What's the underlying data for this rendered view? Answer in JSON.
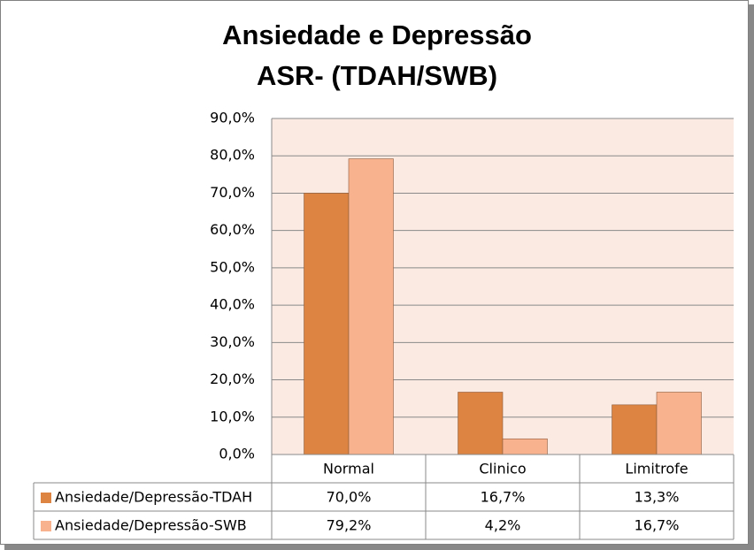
{
  "chart_data": {
    "type": "bar",
    "title": [
      "Ansiedade e Depressão",
      "ASR- (TDAH/SWB)"
    ],
    "categories": [
      "Normal",
      "Clinico",
      "Limitrofe"
    ],
    "series": [
      {
        "name": "Ansiedade/Depressão-TDAH",
        "color": "#dd8443",
        "values": [
          70.0,
          16.7,
          13.3
        ],
        "value_labels": [
          "70,0%",
          "16,7%",
          "13,3%"
        ]
      },
      {
        "name": "Ansiedade/Depressão-SWB",
        "color": "#f8b38e",
        "values": [
          79.2,
          4.2,
          16.7
        ],
        "value_labels": [
          "79,2%",
          "4,2%",
          "16,7%"
        ]
      }
    ],
    "ylim": [
      0,
      90
    ],
    "yticks": [
      {
        "value": 0,
        "label": "0,0%"
      },
      {
        "value": 10,
        "label": "10,0%"
      },
      {
        "value": 20,
        "label": "20,0%"
      },
      {
        "value": 30,
        "label": "30,0%"
      },
      {
        "value": 40,
        "label": "40,0%"
      },
      {
        "value": 50,
        "label": "50,0%"
      },
      {
        "value": 60,
        "label": "60,0%"
      },
      {
        "value": 70,
        "label": "70,0%"
      },
      {
        "value": 80,
        "label": "80,0%"
      },
      {
        "value": 90,
        "label": "90,0%"
      }
    ],
    "grid": true,
    "data_table": true
  }
}
